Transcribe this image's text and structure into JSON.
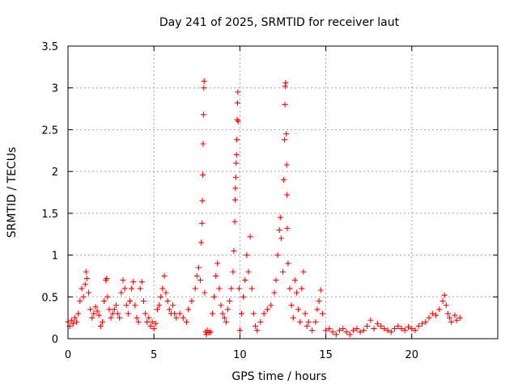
{
  "chart_data": {
    "type": "scatter",
    "title": "Day 241 of 2025, SRMTID for receiver laut",
    "xlabel": "GPS time / hours",
    "ylabel": "SRMTID / TECUs",
    "xlim": [
      0,
      25
    ],
    "ylim": [
      0,
      3.5
    ],
    "x_ticks": [
      0,
      5,
      10,
      15,
      20
    ],
    "x_tick_labels": [
      "0",
      "5",
      "10",
      "15",
      "20"
    ],
    "y_ticks": [
      0,
      0.5,
      1,
      1.5,
      2,
      2.5,
      3,
      3.5
    ],
    "y_tick_labels": [
      "0",
      "0.5",
      "1",
      "1.5",
      "2",
      "2.5",
      "3",
      "3.5"
    ],
    "grid": true,
    "marker": "+",
    "color": "#ff0000",
    "series": [
      {
        "name": "SRMTID",
        "points": [
          [
            0.0,
            0.2
          ],
          [
            0.1,
            0.15
          ],
          [
            0.2,
            0.22
          ],
          [
            0.3,
            0.18
          ],
          [
            0.4,
            0.25
          ],
          [
            0.5,
            0.2
          ],
          [
            0.6,
            0.3
          ],
          [
            0.7,
            0.45
          ],
          [
            0.8,
            0.6
          ],
          [
            0.9,
            0.5
          ],
          [
            1.0,
            0.65
          ],
          [
            1.05,
            0.8
          ],
          [
            1.1,
            0.72
          ],
          [
            1.2,
            0.55
          ],
          [
            1.3,
            0.35
          ],
          [
            1.4,
            0.25
          ],
          [
            1.5,
            0.3
          ],
          [
            1.6,
            0.38
          ],
          [
            1.7,
            0.33
          ],
          [
            1.8,
            0.28
          ],
          [
            1.9,
            0.15
          ],
          [
            2.0,
            0.2
          ],
          [
            2.1,
            0.45
          ],
          [
            2.2,
            0.7
          ],
          [
            2.25,
            0.72
          ],
          [
            2.3,
            0.5
          ],
          [
            2.4,
            0.35
          ],
          [
            2.5,
            0.25
          ],
          [
            2.6,
            0.3
          ],
          [
            2.7,
            0.35
          ],
          [
            2.8,
            0.4
          ],
          [
            2.9,
            0.3
          ],
          [
            3.0,
            0.25
          ],
          [
            3.1,
            0.55
          ],
          [
            3.2,
            0.7
          ],
          [
            3.3,
            0.6
          ],
          [
            3.4,
            0.4
          ],
          [
            3.5,
            0.3
          ],
          [
            3.6,
            0.45
          ],
          [
            3.7,
            0.6
          ],
          [
            3.8,
            0.68
          ],
          [
            3.9,
            0.4
          ],
          [
            4.0,
            0.25
          ],
          [
            4.1,
            0.2
          ],
          [
            4.2,
            0.6
          ],
          [
            4.3,
            0.68
          ],
          [
            4.4,
            0.45
          ],
          [
            4.5,
            0.3
          ],
          [
            4.6,
            0.2
          ],
          [
            4.7,
            0.25
          ],
          [
            4.8,
            0.15
          ],
          [
            4.9,
            0.2
          ],
          [
            5.0,
            0.12
          ],
          [
            5.1,
            0.18
          ],
          [
            5.2,
            0.35
          ],
          [
            5.3,
            0.4
          ],
          [
            5.4,
            0.5
          ],
          [
            5.5,
            0.6
          ],
          [
            5.6,
            0.75
          ],
          [
            5.7,
            0.55
          ],
          [
            5.8,
            0.45
          ],
          [
            5.9,
            0.35
          ],
          [
            6.0,
            0.3
          ],
          [
            6.1,
            0.4
          ],
          [
            6.2,
            0.3
          ],
          [
            6.3,
            0.25
          ],
          [
            6.5,
            0.3
          ],
          [
            6.7,
            0.25
          ],
          [
            6.9,
            0.2
          ],
          [
            7.0,
            0.35
          ],
          [
            7.2,
            0.45
          ],
          [
            7.4,
            0.6
          ],
          [
            7.5,
            0.75
          ],
          [
            7.6,
            0.85
          ],
          [
            7.7,
            0.7
          ],
          [
            7.75,
            1.15
          ],
          [
            7.8,
            1.38
          ],
          [
            7.82,
            1.65
          ],
          [
            7.84,
            1.96
          ],
          [
            7.86,
            2.33
          ],
          [
            7.88,
            2.68
          ],
          [
            7.9,
            3.0
          ],
          [
            7.92,
            3.08
          ],
          [
            7.95,
            0.55
          ],
          [
            8.0,
            0.08
          ],
          [
            8.05,
            0.05
          ],
          [
            8.1,
            0.1
          ],
          [
            8.2,
            0.07
          ],
          [
            8.3,
            0.08
          ],
          [
            8.4,
            0.3
          ],
          [
            8.5,
            0.5
          ],
          [
            8.6,
            0.75
          ],
          [
            8.7,
            0.9
          ],
          [
            8.8,
            0.6
          ],
          [
            8.9,
            0.4
          ],
          [
            9.0,
            0.3
          ],
          [
            9.1,
            0.25
          ],
          [
            9.2,
            0.2
          ],
          [
            9.3,
            0.35
          ],
          [
            9.4,
            0.45
          ],
          [
            9.5,
            0.6
          ],
          [
            9.6,
            0.8
          ],
          [
            9.65,
            1.05
          ],
          [
            9.7,
            1.4
          ],
          [
            9.72,
            1.66
          ],
          [
            9.74,
            1.8
          ],
          [
            9.76,
            1.93
          ],
          [
            9.78,
            2.1
          ],
          [
            9.8,
            2.2
          ],
          [
            9.82,
            2.38
          ],
          [
            9.84,
            2.62
          ],
          [
            9.86,
            2.82
          ],
          [
            9.88,
            2.95
          ],
          [
            9.9,
            2.6
          ],
          [
            9.95,
            0.6
          ],
          [
            10.0,
            0.1
          ],
          [
            10.1,
            0.3
          ],
          [
            10.2,
            0.5
          ],
          [
            10.3,
            0.7
          ],
          [
            10.4,
            1.0
          ],
          [
            10.5,
            0.8
          ],
          [
            10.6,
            1.22
          ],
          [
            10.7,
            0.6
          ],
          [
            10.8,
            0.3
          ],
          [
            10.9,
            0.15
          ],
          [
            11.0,
            0.1
          ],
          [
            11.2,
            0.2
          ],
          [
            11.4,
            0.3
          ],
          [
            11.6,
            0.35
          ],
          [
            11.8,
            0.4
          ],
          [
            12.0,
            0.55
          ],
          [
            12.1,
            0.7
          ],
          [
            12.2,
            1.0
          ],
          [
            12.3,
            1.3
          ],
          [
            12.35,
            1.45
          ],
          [
            12.4,
            1.2
          ],
          [
            12.5,
            0.8
          ],
          [
            12.55,
            1.9
          ],
          [
            12.6,
            2.38
          ],
          [
            12.62,
            2.8
          ],
          [
            12.64,
            3.02
          ],
          [
            12.66,
            3.06
          ],
          [
            12.7,
            2.45
          ],
          [
            12.72,
            2.08
          ],
          [
            12.74,
            1.72
          ],
          [
            12.76,
            1.32
          ],
          [
            12.8,
            0.9
          ],
          [
            12.9,
            0.6
          ],
          [
            13.0,
            0.4
          ],
          [
            13.1,
            0.25
          ],
          [
            13.2,
            0.7
          ],
          [
            13.3,
            0.55
          ],
          [
            13.4,
            0.35
          ],
          [
            13.5,
            0.2
          ],
          [
            13.6,
            0.6
          ],
          [
            13.7,
            0.8
          ],
          [
            13.8,
            0.3
          ],
          [
            13.9,
            0.15
          ],
          [
            14.0,
            0.2
          ],
          [
            14.2,
            0.1
          ],
          [
            14.4,
            0.2
          ],
          [
            14.5,
            0.35
          ],
          [
            14.6,
            0.45
          ],
          [
            14.7,
            0.58
          ],
          [
            14.8,
            0.3
          ],
          [
            15.0,
            0.1
          ],
          [
            15.2,
            0.12
          ],
          [
            15.4,
            0.08
          ],
          [
            15.6,
            0.05
          ],
          [
            15.8,
            0.1
          ],
          [
            16.0,
            0.12
          ],
          [
            16.2,
            0.08
          ],
          [
            16.4,
            0.05
          ],
          [
            16.6,
            0.1
          ],
          [
            16.8,
            0.12
          ],
          [
            17.0,
            0.08
          ],
          [
            17.2,
            0.1
          ],
          [
            17.4,
            0.15
          ],
          [
            17.6,
            0.22
          ],
          [
            17.8,
            0.12
          ],
          [
            18.0,
            0.18
          ],
          [
            18.2,
            0.15
          ],
          [
            18.4,
            0.12
          ],
          [
            18.6,
            0.1
          ],
          [
            18.8,
            0.08
          ],
          [
            19.0,
            0.12
          ],
          [
            19.2,
            0.15
          ],
          [
            19.4,
            0.12
          ],
          [
            19.6,
            0.1
          ],
          [
            19.8,
            0.14
          ],
          [
            20.0,
            0.12
          ],
          [
            20.2,
            0.1
          ],
          [
            20.4,
            0.15
          ],
          [
            20.6,
            0.18
          ],
          [
            20.8,
            0.2
          ],
          [
            21.0,
            0.25
          ],
          [
            21.2,
            0.3
          ],
          [
            21.4,
            0.28
          ],
          [
            21.6,
            0.35
          ],
          [
            21.8,
            0.45
          ],
          [
            21.9,
            0.52
          ],
          [
            22.0,
            0.4
          ],
          [
            22.1,
            0.3
          ],
          [
            22.2,
            0.25
          ],
          [
            22.3,
            0.2
          ],
          [
            22.5,
            0.28
          ],
          [
            22.6,
            0.22
          ],
          [
            22.8,
            0.25
          ]
        ]
      }
    ]
  }
}
